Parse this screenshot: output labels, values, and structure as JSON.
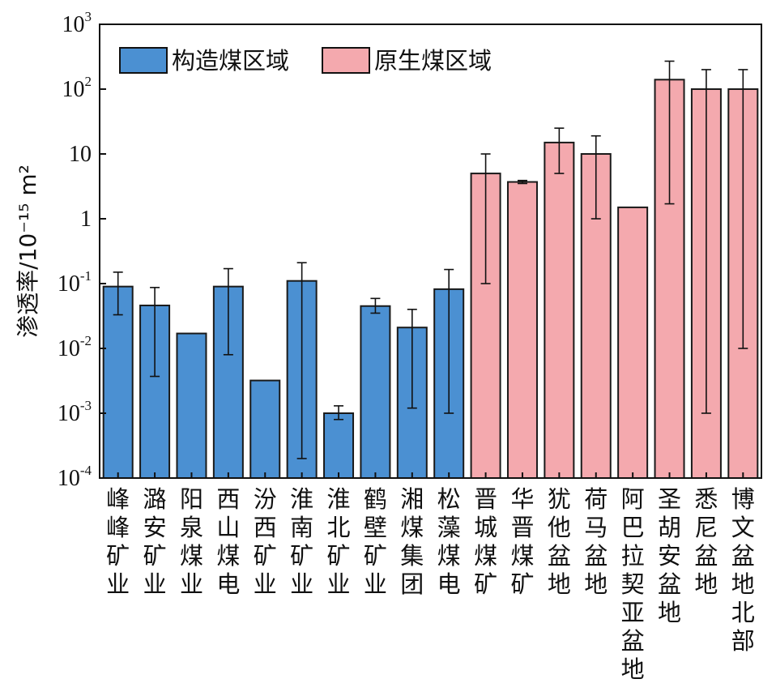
{
  "chart_data": {
    "type": "bar",
    "yscale": "log",
    "ylim": [
      0.0001,
      1000
    ],
    "ylabel": "渗透率/10⁻¹⁵ m²",
    "yticks": [
      {
        "value": 0.0001,
        "base": "10",
        "exp": "-4"
      },
      {
        "value": 0.001,
        "base": "10",
        "exp": "-3"
      },
      {
        "value": 0.01,
        "base": "10",
        "exp": "-2"
      },
      {
        "value": 0.1,
        "base": "10",
        "exp": "-1"
      },
      {
        "value": 1,
        "base": "1",
        "exp": ""
      },
      {
        "value": 10,
        "base": "10",
        "exp": ""
      },
      {
        "value": 100,
        "base": "10",
        "exp": "2"
      },
      {
        "value": 1000,
        "base": "10",
        "exp": "3"
      }
    ],
    "legend": {
      "placement": "top-left",
      "entries": [
        {
          "label": "构造煤区域",
          "color": "#4b90d2"
        },
        {
          "label": "原生煤区域",
          "color": "#f4a9ae"
        }
      ]
    },
    "colors": {
      "tectonic": "#4b90d2",
      "primary": "#f4a9ae",
      "edge": "#1a1a1a"
    },
    "categories": [
      "峰峰矿业",
      "潞安矿业",
      "阳泉煤业",
      "西山煤电",
      "汾西矿业",
      "淮南矿业",
      "淮北矿业",
      "鹤壁矿业",
      "湘煤集团",
      "松藻煤电",
      "晋城煤矿",
      "华晋煤矿",
      "犹他盆地",
      "荷马盆地",
      "阿巴拉契亚盆地",
      "圣胡安盆地",
      "悉尼盆地",
      "博文盆地北部"
    ],
    "groups": [
      "tectonic",
      "tectonic",
      "tectonic",
      "tectonic",
      "tectonic",
      "tectonic",
      "tectonic",
      "tectonic",
      "tectonic",
      "tectonic",
      "primary",
      "primary",
      "primary",
      "primary",
      "primary",
      "primary",
      "primary",
      "primary"
    ],
    "values": [
      0.09,
      0.046,
      0.017,
      0.09,
      0.0032,
      0.11,
      0.001,
      0.045,
      0.021,
      0.082,
      5.0,
      3.7,
      15,
      10,
      1.5,
      140,
      100,
      100
    ],
    "error_low": [
      0.033,
      0.0037,
      null,
      0.008,
      null,
      0.0002,
      0.0008,
      0.035,
      0.0012,
      0.001,
      0.1,
      3.5,
      5,
      1.0,
      null,
      1.7,
      0.001,
      0.01
    ],
    "error_high": [
      0.15,
      0.087,
      null,
      0.17,
      null,
      0.21,
      0.0013,
      0.059,
      0.04,
      0.165,
      10,
      3.9,
      25,
      19,
      null,
      270,
      200,
      200
    ]
  }
}
